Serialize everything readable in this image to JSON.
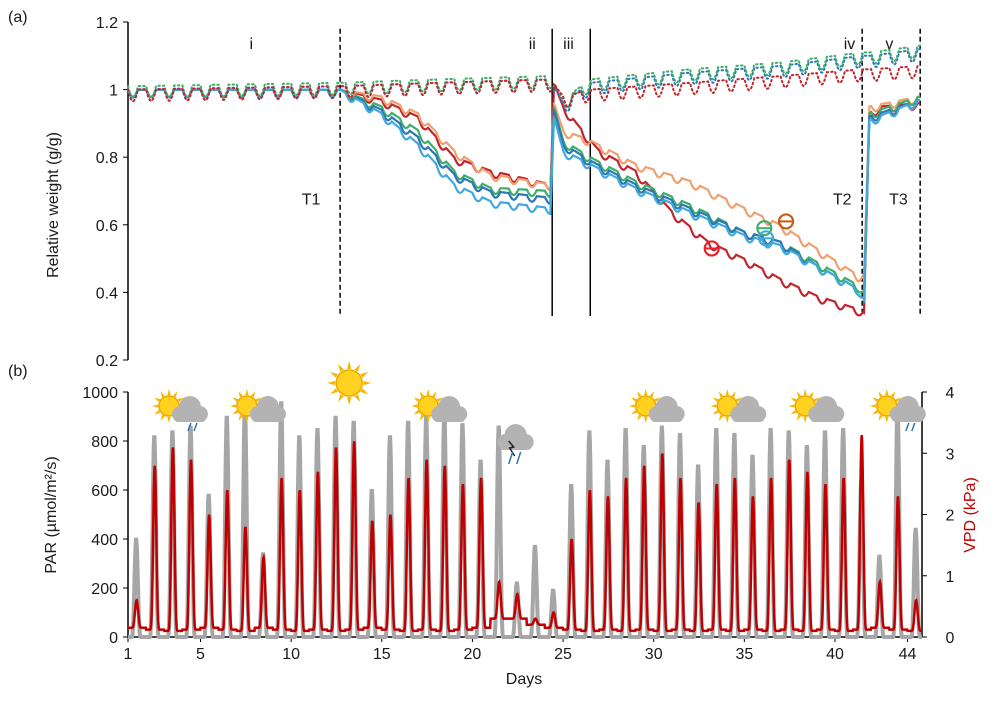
{
  "chart_data": [
    {
      "panel_label": "(a)",
      "type": "line",
      "ylabel": "Relative weight (g/g)",
      "ylim": [
        0.2,
        1.2
      ],
      "yticks": [
        "0.2",
        "0.4",
        "0.6",
        "0.8",
        "1",
        "1.2"
      ],
      "xlim": [
        1,
        44.8
      ],
      "phases": [
        {
          "label": "i",
          "x": 7.8
        },
        {
          "label": "ii",
          "x": 23.3
        },
        {
          "label": "iii",
          "x": 25.3
        },
        {
          "label": "iv",
          "x": 40.8
        },
        {
          "label": "v",
          "x": 43.0
        }
      ],
      "vertical_lines": [
        {
          "x": 12.7,
          "style": "dashed"
        },
        {
          "x": 24.4,
          "style": "solid"
        },
        {
          "x": 26.5,
          "style": "solid"
        },
        {
          "x": 41.5,
          "style": "dashed"
        },
        {
          "x": 44.7,
          "style": "dashed"
        }
      ],
      "treatments": [
        {
          "label": "T1",
          "x": 11.1,
          "y": 0.66
        },
        {
          "label": "T2",
          "x": 40.4,
          "y": 0.66
        },
        {
          "label": "T3",
          "x": 43.5,
          "y": 0.66
        }
      ],
      "colors": {
        "blue": "#2e75b6",
        "light_blue": "#41a8dc",
        "green": "#3cae6a",
        "orange": "#f0a070",
        "red": "#c0262d"
      },
      "series": [
        {
          "color": "#c0262d",
          "style": "solid",
          "points": [
            [
              1,
              1.0
            ],
            [
              12.7,
              1.0
            ],
            [
              15,
              0.97
            ],
            [
              17,
              0.92
            ],
            [
              19,
              0.8
            ],
            [
              21,
              0.76
            ],
            [
              24.3,
              0.72
            ],
            [
              24.5,
              1.02
            ],
            [
              25,
              0.95
            ],
            [
              26.5,
              0.85
            ],
            [
              27,
              0.82
            ],
            [
              29,
              0.76
            ],
            [
              31,
              0.64
            ],
            [
              33,
              0.55
            ],
            [
              35,
              0.5
            ],
            [
              37,
              0.44
            ],
            [
              39,
              0.39
            ],
            [
              41.3,
              0.35
            ],
            [
              41.6,
              0.34
            ],
            [
              41.9,
              0.93
            ],
            [
              42.5,
              0.95
            ],
            [
              44.7,
              0.96
            ]
          ]
        },
        {
          "color": "#f0a070",
          "style": "solid",
          "points": [
            [
              1,
              1.0
            ],
            [
              12.7,
              1.0
            ],
            [
              15,
              0.98
            ],
            [
              17,
              0.93
            ],
            [
              19,
              0.82
            ],
            [
              21,
              0.75
            ],
            [
              24.3,
              0.72
            ],
            [
              24.5,
              0.96
            ],
            [
              25,
              0.88
            ],
            [
              26.5,
              0.85
            ],
            [
              29,
              0.78
            ],
            [
              32,
              0.73
            ],
            [
              35,
              0.65
            ],
            [
              37,
              0.6
            ],
            [
              39,
              0.53
            ],
            [
              41.3,
              0.45
            ],
            [
              41.6,
              0.45
            ],
            [
              41.9,
              0.95
            ],
            [
              44.7,
              0.98
            ]
          ]
        },
        {
          "color": "#3cae6a",
          "style": "solid",
          "points": [
            [
              1,
              1.0
            ],
            [
              12.7,
              1.0
            ],
            [
              15,
              0.95
            ],
            [
              17,
              0.88
            ],
            [
              19,
              0.76
            ],
            [
              21,
              0.71
            ],
            [
              24.3,
              0.7
            ],
            [
              24.5,
              0.95
            ],
            [
              25,
              0.85
            ],
            [
              26.5,
              0.8
            ],
            [
              29,
              0.73
            ],
            [
              32,
              0.66
            ],
            [
              35,
              0.58
            ],
            [
              37,
              0.55
            ],
            [
              39,
              0.49
            ],
            [
              41.3,
              0.42
            ],
            [
              41.6,
              0.4
            ],
            [
              41.9,
              0.93
            ],
            [
              44.7,
              0.98
            ]
          ]
        },
        {
          "color": "#2e75b6",
          "style": "solid",
          "points": [
            [
              1,
              1.0
            ],
            [
              12.7,
              1.0
            ],
            [
              15,
              0.94
            ],
            [
              17,
              0.86
            ],
            [
              19,
              0.75
            ],
            [
              21,
              0.7
            ],
            [
              24.3,
              0.68
            ],
            [
              24.5,
              0.94
            ],
            [
              25,
              0.84
            ],
            [
              26.5,
              0.79
            ],
            [
              29,
              0.72
            ],
            [
              32,
              0.65
            ],
            [
              35,
              0.58
            ],
            [
              37,
              0.55
            ],
            [
              39,
              0.48
            ],
            [
              41.3,
              0.41
            ],
            [
              41.6,
              0.38
            ],
            [
              41.9,
              0.92
            ],
            [
              44.7,
              0.97
            ]
          ]
        },
        {
          "color": "#41a8dc",
          "style": "solid",
          "points": [
            [
              1,
              1.0
            ],
            [
              12.7,
              1.0
            ],
            [
              15,
              0.93
            ],
            [
              17,
              0.84
            ],
            [
              19,
              0.72
            ],
            [
              21,
              0.67
            ],
            [
              24.3,
              0.65
            ],
            [
              24.5,
              0.92
            ],
            [
              25,
              0.82
            ],
            [
              26.5,
              0.78
            ],
            [
              29,
              0.71
            ],
            [
              32,
              0.64
            ],
            [
              35,
              0.57
            ],
            [
              37,
              0.54
            ],
            [
              39,
              0.48
            ],
            [
              41.3,
              0.41
            ],
            [
              41.6,
              0.38
            ],
            [
              41.9,
              0.91
            ],
            [
              44.7,
              0.97
            ]
          ]
        },
        {
          "color": "#2e75b6",
          "style": "dotted",
          "points": [
            [
              1,
              1.0
            ],
            [
              12.7,
              1.01
            ],
            [
              18,
              1.02
            ],
            [
              24.3,
              1.03
            ],
            [
              25,
              0.96
            ],
            [
              26.5,
              1.02
            ],
            [
              32,
              1.05
            ],
            [
              37,
              1.07
            ],
            [
              41.5,
              1.1
            ],
            [
              42,
              1.1
            ],
            [
              44.7,
              1.12
            ]
          ]
        },
        {
          "color": "#3cae6a",
          "style": "dotted",
          "points": [
            [
              1,
              1.01
            ],
            [
              12.7,
              1.02
            ],
            [
              18,
              1.03
            ],
            [
              24.3,
              1.04
            ],
            [
              25,
              0.97
            ],
            [
              26.5,
              1.03
            ],
            [
              32,
              1.06
            ],
            [
              37,
              1.08
            ],
            [
              41.5,
              1.11
            ],
            [
              42,
              1.11
            ],
            [
              44.7,
              1.13
            ]
          ]
        },
        {
          "color": "#c0262d",
          "style": "dotted",
          "points": [
            [
              1,
              1.0
            ],
            [
              12.7,
              1.01
            ],
            [
              18,
              1.02
            ],
            [
              24.3,
              1.03
            ],
            [
              25,
              0.98
            ],
            [
              26.5,
              1.0
            ],
            [
              32,
              1.02
            ],
            [
              37,
              1.04
            ],
            [
              41.5,
              1.06
            ],
            [
              42,
              1.06
            ],
            [
              44.7,
              1.07
            ]
          ]
        }
      ],
      "markers": [
        {
          "x": 33.2,
          "y": 0.53,
          "color": "#e8212d"
        },
        {
          "x": 36.1,
          "y": 0.59,
          "color": "#3cae6a"
        },
        {
          "x": 36.2,
          "y": 0.56,
          "color": "#41a8dc"
        },
        {
          "x": 37.3,
          "y": 0.61,
          "color": "#c55a11"
        }
      ]
    },
    {
      "panel_label": "(b)",
      "type": "line",
      "xlabel": "Days",
      "ylabel": "PAR  (µmol/m²/s)",
      "y2label": "VPD (kPa)",
      "xlim": [
        1,
        44.8
      ],
      "ylim": [
        0,
        1000
      ],
      "y2lim": [
        0,
        4
      ],
      "xticks": [
        "1",
        "5",
        "10",
        "15",
        "20",
        "25",
        "30",
        "35",
        "40",
        "44"
      ],
      "yticks": [
        "0",
        "200",
        "400",
        "600",
        "800",
        "1000"
      ],
      "y2ticks": [
        "0",
        "1",
        "2",
        "3",
        "4"
      ],
      "series": [
        {
          "name": "PAR",
          "color": "#a6a6a6",
          "daily_peaks": [
            400,
            820,
            840,
            860,
            580,
            900,
            950,
            340,
            960,
            820,
            850,
            900,
            880,
            600,
            820,
            880,
            900,
            920,
            870,
            720,
            860,
            220,
            370,
            190,
            620,
            840,
            720,
            850,
            780,
            860,
            830,
            700,
            850,
            830,
            740,
            850,
            840,
            780,
            840,
            850,
            640,
            330,
            940,
            440
          ],
          "night_values": [
            0,
            0,
            0,
            0,
            0,
            0,
            0,
            0,
            0,
            0,
            0,
            0,
            0,
            0,
            0,
            0,
            0,
            0,
            0,
            0,
            0,
            0,
            0,
            0,
            0,
            0,
            0,
            0,
            0,
            0,
            0,
            0,
            0,
            0,
            0,
            0,
            0,
            0,
            0,
            0,
            0,
            0,
            0,
            0
          ]
        },
        {
          "name": "VPD",
          "color": "#c00000",
          "axis": "right",
          "daily_peaks": [
            0.6,
            2.8,
            3.1,
            2.9,
            2.0,
            2.4,
            1.8,
            1.3,
            2.6,
            2.4,
            2.7,
            3.1,
            3.2,
            1.9,
            2.0,
            2.6,
            2.9,
            2.8,
            2.5,
            2.6,
            0.9,
            0.7,
            0.3,
            0.4,
            1.6,
            2.4,
            2.3,
            2.6,
            2.8,
            3.0,
            2.6,
            2.2,
            2.5,
            2.6,
            2.3,
            2.6,
            2.9,
            2.7,
            2.5,
            2.6,
            3.3,
            0.9,
            2.3,
            0.6
          ],
          "night_values": [
            0.15,
            0.12,
            0.1,
            0.12,
            0.15,
            0.12,
            0.1,
            0.15,
            0.12,
            0.1,
            0.12,
            0.1,
            0.12,
            0.15,
            0.12,
            0.1,
            0.12,
            0.1,
            0.12,
            0.15,
            0.3,
            0.3,
            0.2,
            0.15,
            0.12,
            0.1,
            0.12,
            0.1,
            0.12,
            0.1,
            0.12,
            0.1,
            0.12,
            0.1,
            0.12,
            0.1,
            0.12,
            0.1,
            0.12,
            0.1,
            0.12,
            0.15,
            0.12,
            0.1
          ]
        }
      ],
      "weather_icons": [
        {
          "day": 3.7,
          "icon": "sun-cloud-rain-icon"
        },
        {
          "day": 8.0,
          "icon": "sun-cloud-icon"
        },
        {
          "day": 13.2,
          "icon": "sun-icon"
        },
        {
          "day": 18.0,
          "icon": "sun-cloud-icon"
        },
        {
          "day": 22.0,
          "icon": "thunderstorm-icon"
        },
        {
          "day": 30.0,
          "icon": "sun-cloud-icon"
        },
        {
          "day": 34.5,
          "icon": "sun-cloud-icon"
        },
        {
          "day": 38.8,
          "icon": "sun-cloud-icon"
        },
        {
          "day": 43.3,
          "icon": "sun-cloud-rain-icon"
        }
      ]
    }
  ]
}
